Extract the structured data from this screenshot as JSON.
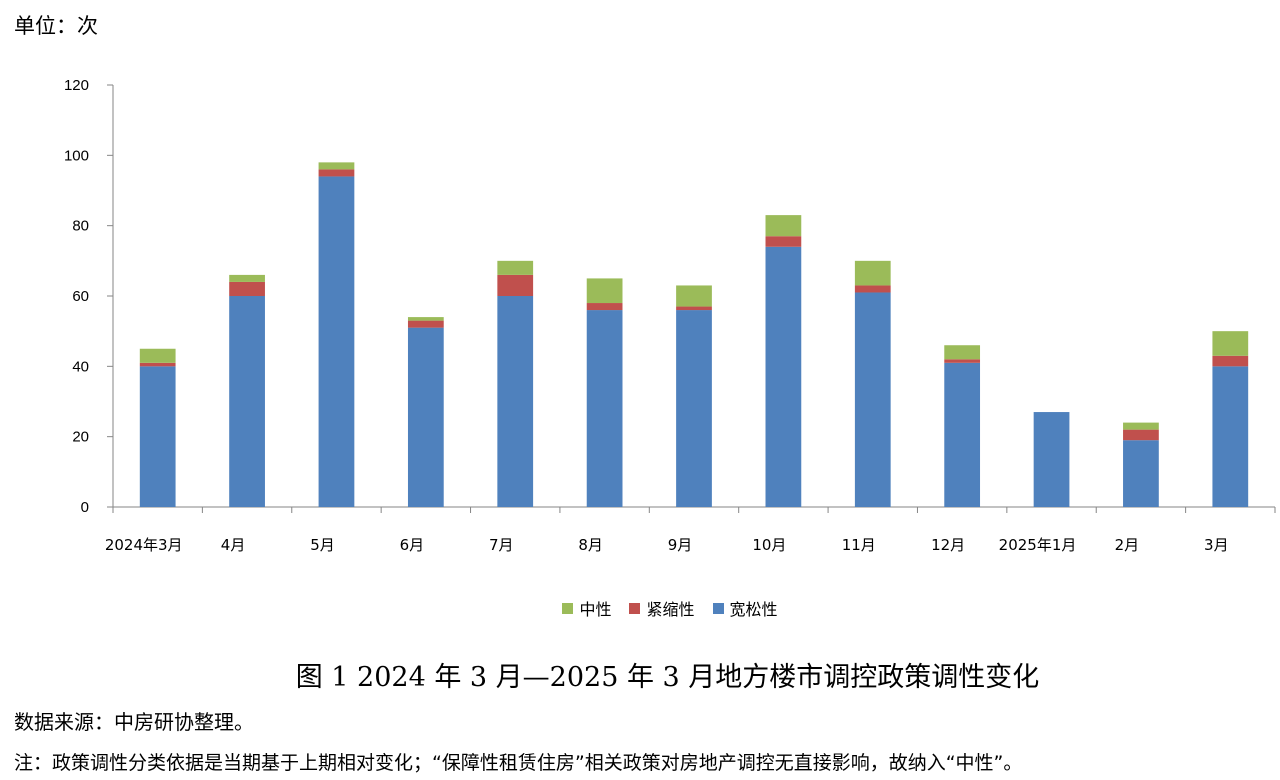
{
  "unit_label": "单位：次",
  "figure_title": "图 1 2024 年 3 月—2025 年 3 月地方楼市调控政策调性变化",
  "source_text": "数据来源：中房研协整理。",
  "note_text": "注：政策调性分类依据是当期基于上期相对变化；“保障性租赁住房”相关政策对房地产调控无直接影响，故纳入“中性”。",
  "colors": {
    "loose": "#4F81BD",
    "tight": "#C0504D",
    "neutral": "#9BBB59",
    "axis": "#868686"
  },
  "chart_data": {
    "type": "bar",
    "stacked": true,
    "title": "图 1 2024 年 3 月—2025 年 3 月地方楼市调控政策调性变化",
    "xlabel": "",
    "ylabel": "单位：次",
    "ylim": [
      0,
      120
    ],
    "yticks": [
      0,
      20,
      40,
      60,
      80,
      100,
      120
    ],
    "categories": [
      "2024年3月",
      "4月",
      "5月",
      "6月",
      "7月",
      "8月",
      "9月",
      "10月",
      "11月",
      "12月",
      "2025年1月",
      "2月",
      "3月"
    ],
    "series": [
      {
        "name": "宽松性",
        "color": "#4F81BD",
        "values": [
          40,
          60,
          94,
          51,
          60,
          56,
          56,
          74,
          61,
          41,
          27,
          19,
          40
        ]
      },
      {
        "name": "紧缩性",
        "color": "#C0504D",
        "values": [
          1,
          4,
          2,
          2,
          6,
          2,
          1,
          3,
          2,
          1,
          0,
          3,
          3
        ]
      },
      {
        "name": "中性",
        "color": "#9BBB59",
        "values": [
          4,
          2,
          2,
          1,
          4,
          7,
          6,
          6,
          7,
          4,
          0,
          2,
          7
        ]
      }
    ],
    "legend": [
      "中性",
      "紧缩性",
      "宽松性"
    ],
    "legend_position": "bottom"
  }
}
